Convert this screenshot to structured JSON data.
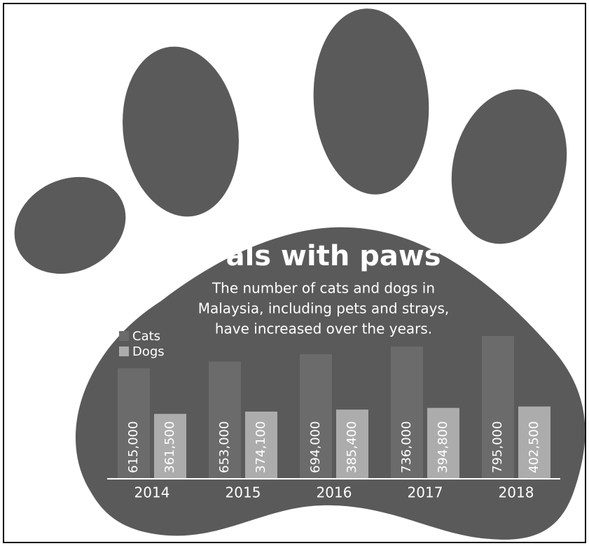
{
  "chart_data": {
    "type": "bar",
    "title": "Pals with paws",
    "subtitle": [
      "The number of cats and dogs in",
      "Malaysia, including pets and strays,",
      "have increased over the years."
    ],
    "categories": [
      "2014",
      "2015",
      "2016",
      "2017",
      "2018"
    ],
    "series": [
      {
        "name": "Cats",
        "color": "#6b6b6b",
        "values": [
          615000,
          653000,
          694000,
          736000,
          795000
        ],
        "value_labels": [
          "615,000",
          "653,000",
          "694,000",
          "736,000",
          "795,000"
        ]
      },
      {
        "name": "Dogs",
        "color": "#acacac",
        "values": [
          361500,
          374100,
          385400,
          394800,
          402500
        ],
        "value_labels": [
          "361,500",
          "374,100",
          "385,400",
          "394,800",
          "402,500"
        ]
      }
    ]
  }
}
